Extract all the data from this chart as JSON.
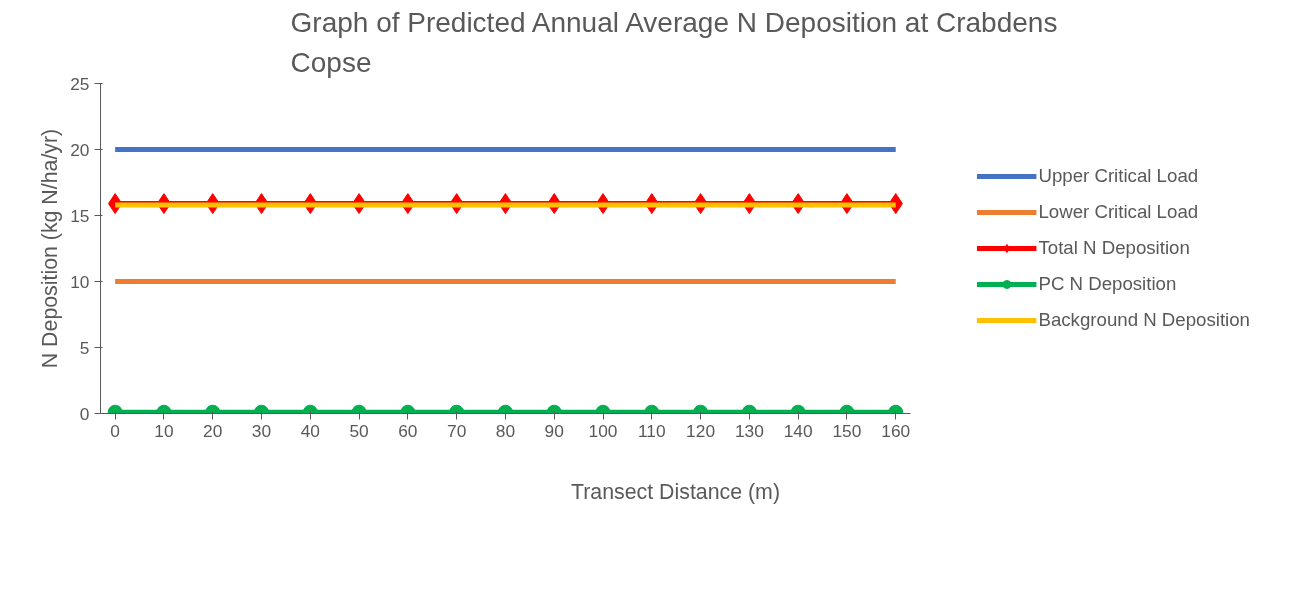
{
  "chart_data": {
    "type": "line",
    "title": "Graph of Predicted Annual Average N Deposition at Crabdens Copse",
    "xlabel": "Transect Distance (m)",
    "ylabel": "N Deposition (kg N/ha/yr)",
    "categories": [
      "0",
      "10",
      "20",
      "30",
      "40",
      "50",
      "60",
      "70",
      "80",
      "90",
      "100",
      "110",
      "120",
      "130",
      "140",
      "150",
      "160"
    ],
    "ylim": [
      0,
      25
    ],
    "yticks": [
      0,
      5,
      10,
      15,
      20,
      25
    ],
    "grid": false,
    "legend": "right",
    "series": [
      {
        "name": "Upper Critical Load",
        "color": "#4472c4",
        "marker": "none",
        "values": [
          20,
          20,
          20,
          20,
          20,
          20,
          20,
          20,
          20,
          20,
          20,
          20,
          20,
          20,
          20,
          20,
          20
        ]
      },
      {
        "name": "Lower Critical Load",
        "color": "#ed7d31",
        "marker": "none",
        "values": [
          10,
          10,
          10,
          10,
          10,
          10,
          10,
          10,
          10,
          10,
          10,
          10,
          10,
          10,
          10,
          10,
          10
        ]
      },
      {
        "name": "Total N Deposition",
        "color": "#ff0000",
        "marker": "diamond",
        "values": [
          15.9,
          15.9,
          15.9,
          15.9,
          15.9,
          15.9,
          15.9,
          15.9,
          15.9,
          15.9,
          15.9,
          15.9,
          15.9,
          15.9,
          15.9,
          15.9,
          15.9
        ]
      },
      {
        "name": "PC N Deposition",
        "color": "#00b050",
        "marker": "circle",
        "values": [
          0.1,
          0.1,
          0.1,
          0.1,
          0.1,
          0.1,
          0.1,
          0.1,
          0.1,
          0.1,
          0.1,
          0.1,
          0.1,
          0.1,
          0.1,
          0.1,
          0.1
        ]
      },
      {
        "name": "Background N Deposition",
        "color": "#ffc000",
        "marker": "none",
        "values": [
          15.8,
          15.8,
          15.8,
          15.8,
          15.8,
          15.8,
          15.8,
          15.8,
          15.8,
          15.8,
          15.8,
          15.8,
          15.8,
          15.8,
          15.8,
          15.8,
          15.8
        ]
      }
    ]
  }
}
